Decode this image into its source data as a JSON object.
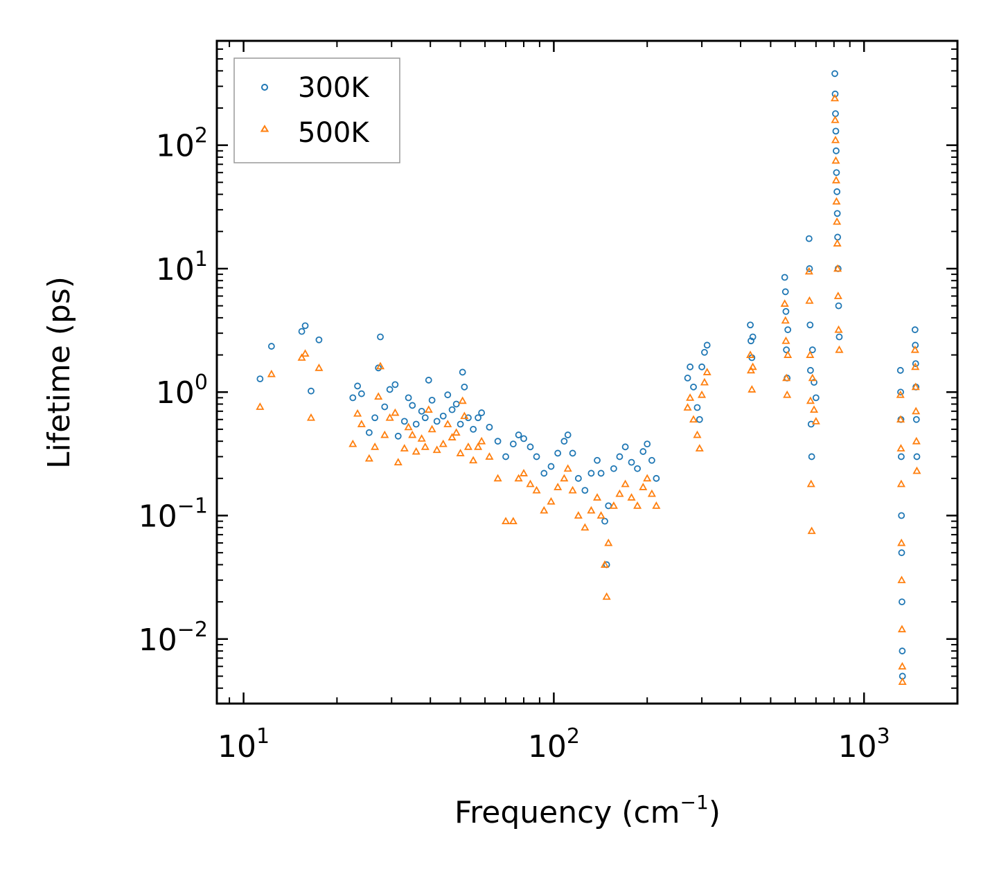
{
  "chart_data": {
    "type": "scatter",
    "title": "",
    "xlabel": "Frequency (cm",
    "xlabel_sup": "−1",
    "xlabel_tail": ")",
    "ylabel": "Lifetime (ps)",
    "xscale": "log",
    "yscale": "log",
    "xlim": [
      8.2,
      2000
    ],
    "ylim": [
      0.003,
      700
    ],
    "xticks": [
      {
        "value": 10,
        "base": "10",
        "exp": "1"
      },
      {
        "value": 100,
        "base": "10",
        "exp": "2"
      },
      {
        "value": 1000,
        "base": "10",
        "exp": "3"
      }
    ],
    "yticks": [
      {
        "value": 0.01,
        "base": "10",
        "exp": "−2"
      },
      {
        "value": 0.1,
        "base": "10",
        "exp": "−1"
      },
      {
        "value": 1,
        "base": "10",
        "exp": "0"
      },
      {
        "value": 10,
        "base": "10",
        "exp": "1"
      },
      {
        "value": 100,
        "base": "10",
        "exp": "2"
      }
    ],
    "legend_position": "top-left",
    "series": [
      {
        "name": "300K",
        "marker": "circle",
        "color": "#1f77b4",
        "points": [
          [
            11.3,
            1.28
          ],
          [
            12.3,
            2.35
          ],
          [
            15.4,
            3.1
          ],
          [
            15.8,
            3.45
          ],
          [
            16.5,
            1.02
          ],
          [
            17.5,
            2.65
          ],
          [
            22.5,
            0.9
          ],
          [
            23.3,
            1.12
          ],
          [
            24.0,
            0.97
          ],
          [
            25.4,
            0.47
          ],
          [
            26.5,
            0.62
          ],
          [
            27.2,
            1.57
          ],
          [
            27.6,
            2.8
          ],
          [
            28.5,
            0.76
          ],
          [
            29.6,
            1.05
          ],
          [
            30.8,
            1.15
          ],
          [
            31.5,
            0.44
          ],
          [
            33.0,
            0.58
          ],
          [
            34.0,
            0.9
          ],
          [
            35.0,
            0.78
          ],
          [
            36.0,
            0.55
          ],
          [
            37.5,
            0.7
          ],
          [
            38.5,
            0.62
          ],
          [
            39.5,
            1.25
          ],
          [
            40.5,
            0.86
          ],
          [
            42.0,
            0.58
          ],
          [
            44.0,
            0.64
          ],
          [
            45.5,
            0.95
          ],
          [
            47.0,
            0.72
          ],
          [
            48.5,
            0.8
          ],
          [
            50.0,
            0.55
          ],
          [
            50.8,
            1.45
          ],
          [
            51.5,
            1.1
          ],
          [
            53.0,
            0.62
          ],
          [
            55.0,
            0.5
          ],
          [
            57.0,
            0.62
          ],
          [
            58.5,
            0.68
          ],
          [
            62.0,
            0.52
          ],
          [
            66.0,
            0.4
          ],
          [
            70.0,
            0.3
          ],
          [
            74.0,
            0.38
          ],
          [
            77.0,
            0.45
          ],
          [
            80.0,
            0.42
          ],
          [
            84.0,
            0.36
          ],
          [
            88.0,
            0.3
          ],
          [
            93.0,
            0.22
          ],
          [
            98.0,
            0.25
          ],
          [
            103.0,
            0.32
          ],
          [
            108.0,
            0.4
          ],
          [
            111.0,
            0.45
          ],
          [
            115.0,
            0.32
          ],
          [
            120.0,
            0.2
          ],
          [
            126.0,
            0.16
          ],
          [
            132.0,
            0.22
          ],
          [
            138.0,
            0.28
          ],
          [
            142.0,
            0.22
          ],
          [
            146.0,
            0.09
          ],
          [
            148.0,
            0.04
          ],
          [
            150.0,
            0.12
          ],
          [
            156.0,
            0.24
          ],
          [
            163.0,
            0.3
          ],
          [
            170.0,
            0.36
          ],
          [
            178.0,
            0.27
          ],
          [
            186.0,
            0.24
          ],
          [
            194.0,
            0.33
          ],
          [
            200.0,
            0.38
          ],
          [
            207.0,
            0.28
          ],
          [
            214.0,
            0.2
          ],
          [
            270.0,
            1.3
          ],
          [
            275.0,
            1.6
          ],
          [
            282.0,
            1.1
          ],
          [
            290.0,
            0.75
          ],
          [
            295.0,
            0.6
          ],
          [
            300.0,
            1.6
          ],
          [
            306.0,
            2.1
          ],
          [
            312.0,
            2.4
          ],
          [
            430.0,
            3.5
          ],
          [
            432.0,
            2.6
          ],
          [
            435.0,
            1.9
          ],
          [
            438.0,
            2.8
          ],
          [
            555.0,
            8.5
          ],
          [
            558.0,
            6.5
          ],
          [
            560.0,
            4.5
          ],
          [
            562.0,
            2.2
          ],
          [
            565.0,
            1.3
          ],
          [
            568.0,
            3.2
          ],
          [
            665.0,
            17.5
          ],
          [
            667.0,
            10.0
          ],
          [
            670.0,
            3.5
          ],
          [
            672.0,
            1.5
          ],
          [
            675.0,
            0.55
          ],
          [
            678.0,
            0.3
          ],
          [
            682.0,
            2.2
          ],
          [
            690.0,
            1.2
          ],
          [
            700.0,
            0.9
          ],
          [
            805.0,
            380.0
          ],
          [
            807.0,
            260.0
          ],
          [
            809.0,
            180.0
          ],
          [
            811.0,
            130.0
          ],
          [
            813.0,
            90.0
          ],
          [
            815.0,
            60.0
          ],
          [
            818.0,
            42.0
          ],
          [
            820.0,
            28.0
          ],
          [
            822.0,
            18.0
          ],
          [
            825.0,
            10.0
          ],
          [
            828.0,
            5.0
          ],
          [
            832.0,
            2.8
          ],
          [
            1310.0,
            1.5
          ],
          [
            1312.0,
            1.0
          ],
          [
            1315.0,
            0.6
          ],
          [
            1318.0,
            0.3
          ],
          [
            1320.0,
            0.1
          ],
          [
            1322.0,
            0.05
          ],
          [
            1325.0,
            0.02
          ],
          [
            1328.0,
            0.008
          ],
          [
            1330.0,
            0.005
          ],
          [
            1460.0,
            3.2
          ],
          [
            1463.0,
            2.4
          ],
          [
            1467.0,
            1.7
          ],
          [
            1470.0,
            1.1
          ],
          [
            1475.0,
            0.6
          ],
          [
            1480.0,
            0.3
          ]
        ]
      },
      {
        "name": "500K",
        "marker": "triangle",
        "color": "#ff7f0e",
        "points": [
          [
            11.3,
            0.76
          ],
          [
            12.3,
            1.4
          ],
          [
            15.4,
            1.9
          ],
          [
            15.8,
            2.05
          ],
          [
            16.5,
            0.62
          ],
          [
            17.5,
            1.57
          ],
          [
            22.5,
            0.38
          ],
          [
            23.3,
            0.67
          ],
          [
            24.0,
            0.55
          ],
          [
            25.4,
            0.29
          ],
          [
            26.5,
            0.36
          ],
          [
            27.2,
            0.92
          ],
          [
            27.6,
            1.62
          ],
          [
            28.5,
            0.45
          ],
          [
            29.6,
            0.62
          ],
          [
            30.8,
            0.68
          ],
          [
            31.5,
            0.27
          ],
          [
            33.0,
            0.35
          ],
          [
            34.0,
            0.52
          ],
          [
            35.0,
            0.45
          ],
          [
            36.0,
            0.33
          ],
          [
            37.5,
            0.42
          ],
          [
            38.5,
            0.36
          ],
          [
            39.5,
            0.72
          ],
          [
            40.5,
            0.5
          ],
          [
            42.0,
            0.34
          ],
          [
            44.0,
            0.38
          ],
          [
            45.5,
            0.55
          ],
          [
            47.0,
            0.43
          ],
          [
            48.5,
            0.47
          ],
          [
            50.0,
            0.32
          ],
          [
            50.8,
            0.85
          ],
          [
            51.5,
            0.64
          ],
          [
            53.0,
            0.36
          ],
          [
            55.0,
            0.28
          ],
          [
            57.0,
            0.36
          ],
          [
            58.5,
            0.4
          ],
          [
            62.0,
            0.3
          ],
          [
            66.0,
            0.2
          ],
          [
            70.0,
            0.09
          ],
          [
            74.0,
            0.09
          ],
          [
            77.0,
            0.2
          ],
          [
            80.0,
            0.22
          ],
          [
            84.0,
            0.18
          ],
          [
            88.0,
            0.16
          ],
          [
            93.0,
            0.11
          ],
          [
            98.0,
            0.13
          ],
          [
            103.0,
            0.17
          ],
          [
            108.0,
            0.2
          ],
          [
            111.0,
            0.24
          ],
          [
            115.0,
            0.16
          ],
          [
            120.0,
            0.1
          ],
          [
            126.0,
            0.08
          ],
          [
            132.0,
            0.11
          ],
          [
            138.0,
            0.14
          ],
          [
            142.0,
            0.1
          ],
          [
            146.0,
            0.04
          ],
          [
            148.0,
            0.022
          ],
          [
            150.0,
            0.06
          ],
          [
            156.0,
            0.12
          ],
          [
            163.0,
            0.15
          ],
          [
            170.0,
            0.18
          ],
          [
            178.0,
            0.14
          ],
          [
            186.0,
            0.12
          ],
          [
            194.0,
            0.17
          ],
          [
            200.0,
            0.2
          ],
          [
            207.0,
            0.15
          ],
          [
            214.0,
            0.12
          ],
          [
            270.0,
            0.75
          ],
          [
            275.0,
            0.9
          ],
          [
            282.0,
            0.6
          ],
          [
            290.0,
            0.45
          ],
          [
            295.0,
            0.35
          ],
          [
            300.0,
            0.95
          ],
          [
            306.0,
            1.2
          ],
          [
            312.0,
            1.45
          ],
          [
            430.0,
            2.0
          ],
          [
            432.0,
            1.5
          ],
          [
            435.0,
            1.05
          ],
          [
            438.0,
            1.6
          ],
          [
            555.0,
            5.2
          ],
          [
            558.0,
            3.8
          ],
          [
            560.0,
            2.6
          ],
          [
            562.0,
            1.3
          ],
          [
            565.0,
            0.95
          ],
          [
            568.0,
            2.0
          ],
          [
            665.0,
            9.5
          ],
          [
            667.0,
            5.5
          ],
          [
            670.0,
            2.0
          ],
          [
            672.0,
            0.85
          ],
          [
            675.0,
            0.18
          ],
          [
            678.0,
            0.075
          ],
          [
            682.0,
            1.3
          ],
          [
            690.0,
            0.72
          ],
          [
            700.0,
            0.58
          ],
          [
            805.0,
            240.0
          ],
          [
            807.0,
            160.0
          ],
          [
            809.0,
            110.0
          ],
          [
            811.0,
            75.0
          ],
          [
            813.0,
            52.0
          ],
          [
            815.0,
            35.0
          ],
          [
            818.0,
            24.0
          ],
          [
            820.0,
            16.0
          ],
          [
            822.0,
            10.0
          ],
          [
            825.0,
            6.0
          ],
          [
            828.0,
            3.2
          ],
          [
            832.0,
            2.2
          ],
          [
            1310.0,
            0.95
          ],
          [
            1312.0,
            0.6
          ],
          [
            1315.0,
            0.35
          ],
          [
            1318.0,
            0.18
          ],
          [
            1320.0,
            0.06
          ],
          [
            1322.0,
            0.03
          ],
          [
            1325.0,
            0.012
          ],
          [
            1328.0,
            0.006
          ],
          [
            1330.0,
            0.0045
          ],
          [
            1460.0,
            2.2
          ],
          [
            1463.0,
            1.6
          ],
          [
            1467.0,
            1.1
          ],
          [
            1470.0,
            0.7
          ],
          [
            1475.0,
            0.4
          ],
          [
            1480.0,
            0.23
          ]
        ]
      }
    ]
  }
}
